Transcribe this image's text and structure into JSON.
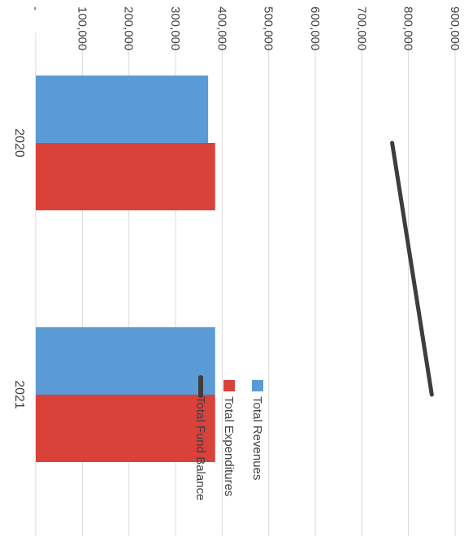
{
  "chart_data": {
    "type": "bar",
    "orientation": "rotated-90-clockwise",
    "categories": [
      "2020",
      "2021"
    ],
    "series": [
      {
        "name": "Total Revenues",
        "kind": "bar",
        "color": "#5b9bd5",
        "values": [
          370000,
          385000
        ]
      },
      {
        "name": "Total Expenditures",
        "kind": "bar",
        "color": "#d9413a",
        "values": [
          385000,
          385000
        ]
      },
      {
        "name": "Total Fund Balance",
        "kind": "line",
        "color": "#3d3d3d",
        "values": [
          765000,
          850000
        ]
      }
    ],
    "ylim": [
      0,
      900000
    ],
    "ytick_values": [
      0,
      100000,
      200000,
      300000,
      400000,
      500000,
      600000,
      700000,
      800000,
      900000
    ],
    "ytick_labels": [
      "-",
      "100,000",
      "200,000",
      "300,000",
      "400,000",
      "500,000",
      "600,000",
      "700,000",
      "800,000",
      "900,000"
    ],
    "grid": true,
    "legend_position": "right"
  }
}
